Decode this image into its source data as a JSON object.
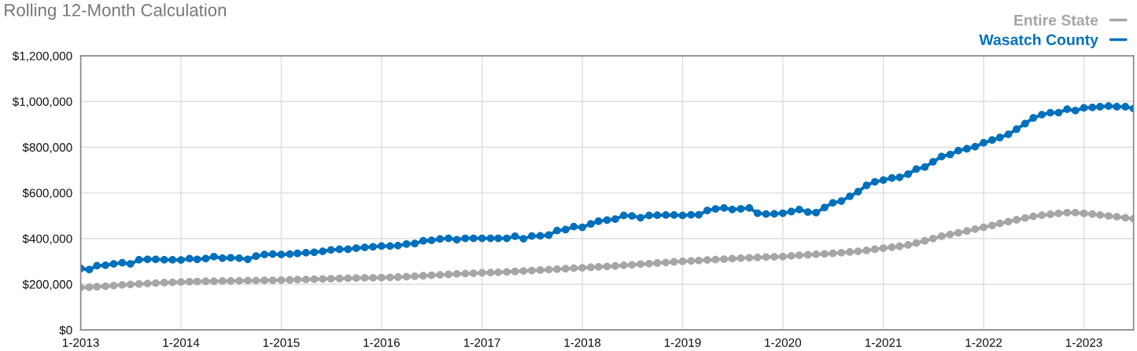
{
  "chart_data": {
    "type": "line",
    "title": "Rolling 12-Month Calculation",
    "x": [
      "2013-01",
      "2013-02",
      "2013-03",
      "2013-04",
      "2013-05",
      "2013-06",
      "2013-07",
      "2013-08",
      "2013-09",
      "2013-10",
      "2013-11",
      "2013-12",
      "2014-01",
      "2014-02",
      "2014-03",
      "2014-04",
      "2014-05",
      "2014-06",
      "2014-07",
      "2014-08",
      "2014-09",
      "2014-10",
      "2014-11",
      "2014-12",
      "2015-01",
      "2015-02",
      "2015-03",
      "2015-04",
      "2015-05",
      "2015-06",
      "2015-07",
      "2015-08",
      "2015-09",
      "2015-10",
      "2015-11",
      "2015-12",
      "2016-01",
      "2016-02",
      "2016-03",
      "2016-04",
      "2016-05",
      "2016-06",
      "2016-07",
      "2016-08",
      "2016-09",
      "2016-10",
      "2016-11",
      "2016-12",
      "2017-01",
      "2017-02",
      "2017-03",
      "2017-04",
      "2017-05",
      "2017-06",
      "2017-07",
      "2017-08",
      "2017-09",
      "2017-10",
      "2017-11",
      "2017-12",
      "2018-01",
      "2018-02",
      "2018-03",
      "2018-04",
      "2018-05",
      "2018-06",
      "2018-07",
      "2018-08",
      "2018-09",
      "2018-10",
      "2018-11",
      "2018-12",
      "2019-01",
      "2019-02",
      "2019-03",
      "2019-04",
      "2019-05",
      "2019-06",
      "2019-07",
      "2019-08",
      "2019-09",
      "2019-10",
      "2019-11",
      "2019-12",
      "2020-01",
      "2020-02",
      "2020-03",
      "2020-04",
      "2020-05",
      "2020-06",
      "2020-07",
      "2020-08",
      "2020-09",
      "2020-10",
      "2020-11",
      "2020-12",
      "2021-01",
      "2021-02",
      "2021-03",
      "2021-04",
      "2021-05",
      "2021-06",
      "2021-07",
      "2021-08",
      "2021-09",
      "2021-10",
      "2021-11",
      "2021-12",
      "2022-01",
      "2022-02",
      "2022-03",
      "2022-04",
      "2022-05",
      "2022-06",
      "2022-07",
      "2022-08",
      "2022-09",
      "2022-10",
      "2022-11",
      "2022-12",
      "2023-01",
      "2023-02",
      "2023-03",
      "2023-04",
      "2023-05",
      "2023-06",
      "2023-07"
    ],
    "series": [
      {
        "name": "Entire State",
        "color": "#a6a6a6",
        "values": [
          186000,
          187000,
          189000,
          191000,
          194000,
          197000,
          199000,
          201000,
          203000,
          205000,
          207000,
          208000,
          210000,
          211000,
          212000,
          213000,
          213000,
          214000,
          214000,
          215000,
          216000,
          216000,
          217000,
          217000,
          218000,
          219000,
          220000,
          221000,
          222000,
          223000,
          224000,
          225000,
          226000,
          227000,
          228000,
          228000,
          229000,
          230000,
          231000,
          233000,
          235000,
          237000,
          239000,
          241000,
          243000,
          245000,
          247000,
          248000,
          250000,
          251000,
          252000,
          254000,
          256000,
          258000,
          260000,
          262000,
          264000,
          266000,
          268000,
          270000,
          272000,
          274000,
          276000,
          278000,
          280000,
          283000,
          285000,
          288000,
          290000,
          293000,
          295000,
          298000,
          300000,
          302000,
          304000,
          306000,
          308000,
          310000,
          312000,
          314000,
          316000,
          317000,
          319000,
          320000,
          321000,
          324000,
          327000,
          329000,
          331000,
          333000,
          335000,
          338000,
          341000,
          344000,
          348000,
          353000,
          358000,
          362000,
          366000,
          372000,
          380000,
          390000,
          400000,
          410000,
          418000,
          425000,
          433000,
          441000,
          449000,
          457000,
          466000,
          474000,
          482000,
          490000,
          497000,
          502000,
          506000,
          510000,
          513000,
          513000,
          510000,
          507000,
          503000,
          499000,
          495000,
          491000,
          487000
        ]
      },
      {
        "name": "Wasatch County",
        "color": "#0070bb",
        "values": [
          269000,
          264000,
          281000,
          283000,
          289000,
          294000,
          289000,
          307000,
          309000,
          309000,
          307000,
          307000,
          306000,
          312000,
          309000,
          312000,
          321000,
          314000,
          316000,
          314000,
          309000,
          323000,
          330000,
          332000,
          330000,
          332000,
          335000,
          338000,
          340000,
          344000,
          350000,
          353000,
          353000,
          358000,
          361000,
          364000,
          367000,
          367000,
          369000,
          376000,
          378000,
          390000,
          392000,
          398000,
          401000,
          395000,
          401000,
          401000,
          401000,
          401000,
          401000,
          401000,
          410000,
          399000,
          411000,
          412000,
          415000,
          435000,
          439000,
          452000,
          449000,
          464000,
          476000,
          481000,
          485000,
          501000,
          499000,
          491000,
          501000,
          502000,
          503000,
          503000,
          501000,
          504000,
          504000,
          523000,
          530000,
          534000,
          527000,
          530000,
          534000,
          511000,
          507000,
          508000,
          511000,
          518000,
          527000,
          516000,
          513000,
          536000,
          556000,
          564000,
          585000,
          605000,
          633000,
          648000,
          656000,
          665000,
          668000,
          682000,
          704000,
          713000,
          736000,
          759000,
          768000,
          785000,
          793000,
          802000,
          819000,
          831000,
          842000,
          856000,
          879000,
          903000,
          928000,
          942000,
          951000,
          951000,
          966000,
          960000,
          972000,
          974000,
          977000,
          980000,
          977000,
          977000,
          969000
        ]
      }
    ],
    "xlim": [
      "2013-01",
      "2023-07"
    ],
    "xticks": [
      {
        "value": "2013-01",
        "label": "1-2013"
      },
      {
        "value": "2014-01",
        "label": "1-2014"
      },
      {
        "value": "2015-01",
        "label": "1-2015"
      },
      {
        "value": "2016-01",
        "label": "1-2016"
      },
      {
        "value": "2017-01",
        "label": "1-2017"
      },
      {
        "value": "2018-01",
        "label": "1-2018"
      },
      {
        "value": "2019-01",
        "label": "1-2019"
      },
      {
        "value": "2020-01",
        "label": "1-2020"
      },
      {
        "value": "2021-01",
        "label": "1-2021"
      },
      {
        "value": "2022-01",
        "label": "1-2022"
      },
      {
        "value": "2023-01",
        "label": "1-2023"
      }
    ],
    "ylim": [
      0,
      1200000
    ],
    "yticks": [
      {
        "value": 0,
        "label": "$0"
      },
      {
        "value": 200000,
        "label": "$200,000"
      },
      {
        "value": 400000,
        "label": "$400,000"
      },
      {
        "value": 600000,
        "label": "$600,000"
      },
      {
        "value": 800000,
        "label": "$800,000"
      },
      {
        "value": 1000000,
        "label": "$1,000,000"
      },
      {
        "value": 1200000,
        "label": "$1,200,000"
      }
    ],
    "grid": true,
    "legend": "top right",
    "marker": "circle",
    "line_style": "solid"
  }
}
